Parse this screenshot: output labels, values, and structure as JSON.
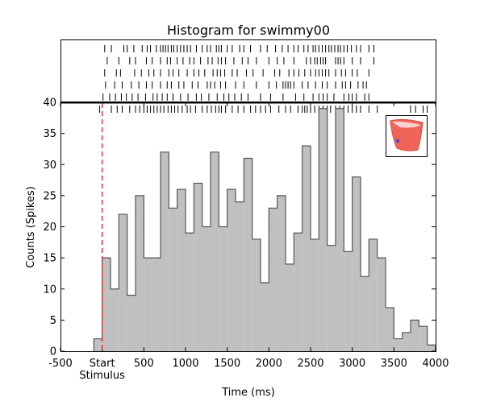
{
  "chart_data": {
    "type": "bar",
    "title": "Histogram for swimmy00",
    "xlabel": "Time (ms)",
    "ylabel": "Counts (Spikes)",
    "xlim": [
      -500,
      4000
    ],
    "ylim": [
      0,
      40
    ],
    "x_ticks": [
      {
        "value": -500,
        "label": "-500"
      },
      {
        "value": 0,
        "label": "Start"
      },
      {
        "value": 500,
        "label": "500"
      },
      {
        "value": 1000,
        "label": "1000"
      },
      {
        "value": 1500,
        "label": "1500"
      },
      {
        "value": 2000,
        "label": "2000"
      },
      {
        "value": 2500,
        "label": "2500"
      },
      {
        "value": 3000,
        "label": "3000"
      },
      {
        "value": 3500,
        "label": "3500"
      },
      {
        "value": 4000,
        "label": "4000"
      }
    ],
    "y_ticks": [
      0,
      5,
      10,
      15,
      20,
      25,
      30,
      35,
      40
    ],
    "stimulus_label": "Stimulus",
    "stimulus_time": 0,
    "bin_width": 100,
    "bin_start": -100,
    "counts": [
      2,
      15,
      10,
      22,
      9,
      25,
      15,
      15,
      32,
      23,
      26,
      19,
      27,
      20,
      32,
      20,
      26,
      24,
      31,
      18,
      11,
      23,
      25,
      14,
      19,
      33,
      18,
      39,
      17,
      39,
      16,
      28,
      12,
      18,
      15,
      7,
      2,
      3,
      5,
      4,
      1
    ],
    "raster": [
      [
        30,
        110,
        260,
        300,
        380,
        480,
        540,
        580,
        650,
        700,
        730,
        760,
        790,
        830,
        860,
        900,
        940,
        980,
        1020,
        1060,
        1130,
        1200,
        1260,
        1300,
        1370,
        1400,
        1430,
        1500,
        1560,
        1650,
        1700,
        1780,
        1900,
        1980,
        2080,
        2160,
        2230,
        2300,
        2350,
        2420,
        2470,
        2530,
        2560,
        2600,
        2640,
        2680,
        2720,
        2750,
        2790,
        2830,
        2860,
        2900,
        2940,
        2990,
        3050,
        3100,
        3200,
        3260
      ],
      [
        60,
        200,
        330,
        400,
        530,
        600,
        700,
        780,
        820,
        900,
        970,
        1050,
        1100,
        1180,
        1270,
        1320,
        1390,
        1430,
        1480,
        1580,
        1680,
        1750,
        1850,
        2000,
        2100,
        2180,
        2300,
        2450,
        2500,
        2550,
        2580,
        2620,
        2650,
        2680,
        2800,
        2830,
        2860,
        2900,
        3000,
        3100,
        3260
      ],
      [
        30,
        170,
        220,
        390,
        470,
        560,
        620,
        700,
        800,
        850,
        920,
        1020,
        1100,
        1160,
        1230,
        1330,
        1380,
        1420,
        1470,
        1560,
        1620,
        1730,
        1810,
        1930,
        2070,
        2130,
        2240,
        2300,
        2360,
        2430,
        2500,
        2560,
        2600,
        2640,
        2680,
        2720,
        2800,
        2870,
        2920,
        3000,
        3060,
        3200
      ],
      [
        40,
        150,
        240,
        350,
        440,
        530,
        600,
        700,
        780,
        830,
        920,
        980,
        1080,
        1150,
        1260,
        1300,
        1350,
        1420,
        1480,
        1600,
        1700,
        1850,
        2000,
        2090,
        2170,
        2200,
        2230,
        2260,
        2300,
        2400,
        2470,
        2560,
        2640,
        2700,
        2800,
        2880,
        2920,
        2980,
        3070,
        3130,
        3170
      ],
      [
        10,
        90,
        160,
        230,
        290,
        360,
        430,
        520,
        610,
        660,
        720,
        780,
        850,
        940,
        1030,
        1130,
        1190,
        1280,
        1380,
        1460,
        1520,
        1590,
        1670,
        1750,
        1900,
        2020,
        2170,
        2320,
        2420,
        2530,
        2600,
        2650,
        2700,
        2780,
        2900,
        2960,
        3000,
        3050,
        3150,
        3200
      ],
      [
        -30,
        110,
        180,
        240,
        330,
        400,
        450,
        500,
        540,
        580,
        620,
        660,
        700,
        740,
        790,
        830,
        870,
        910,
        960,
        1020,
        1060,
        1120,
        1200,
        1260,
        1310,
        1360,
        1400,
        1430,
        1480,
        1560,
        1630,
        1700,
        1780,
        1840,
        1900,
        1960,
        2020,
        2120,
        2200,
        2260,
        2350,
        2400,
        2430,
        2460,
        2500,
        2550,
        2600,
        2650,
        2700,
        2740,
        2800,
        2850,
        2900,
        2950,
        3000,
        3050,
        3100,
        3200,
        3300,
        3700,
        3760,
        3850,
        3900
      ]
    ],
    "colors": {
      "bar_fill": "#c0c0c0",
      "bar_edge": "#555555",
      "stimulus_line": "#e8332e",
      "raster": "#000000"
    },
    "inset_icon": "red-fish-body-icon"
  }
}
